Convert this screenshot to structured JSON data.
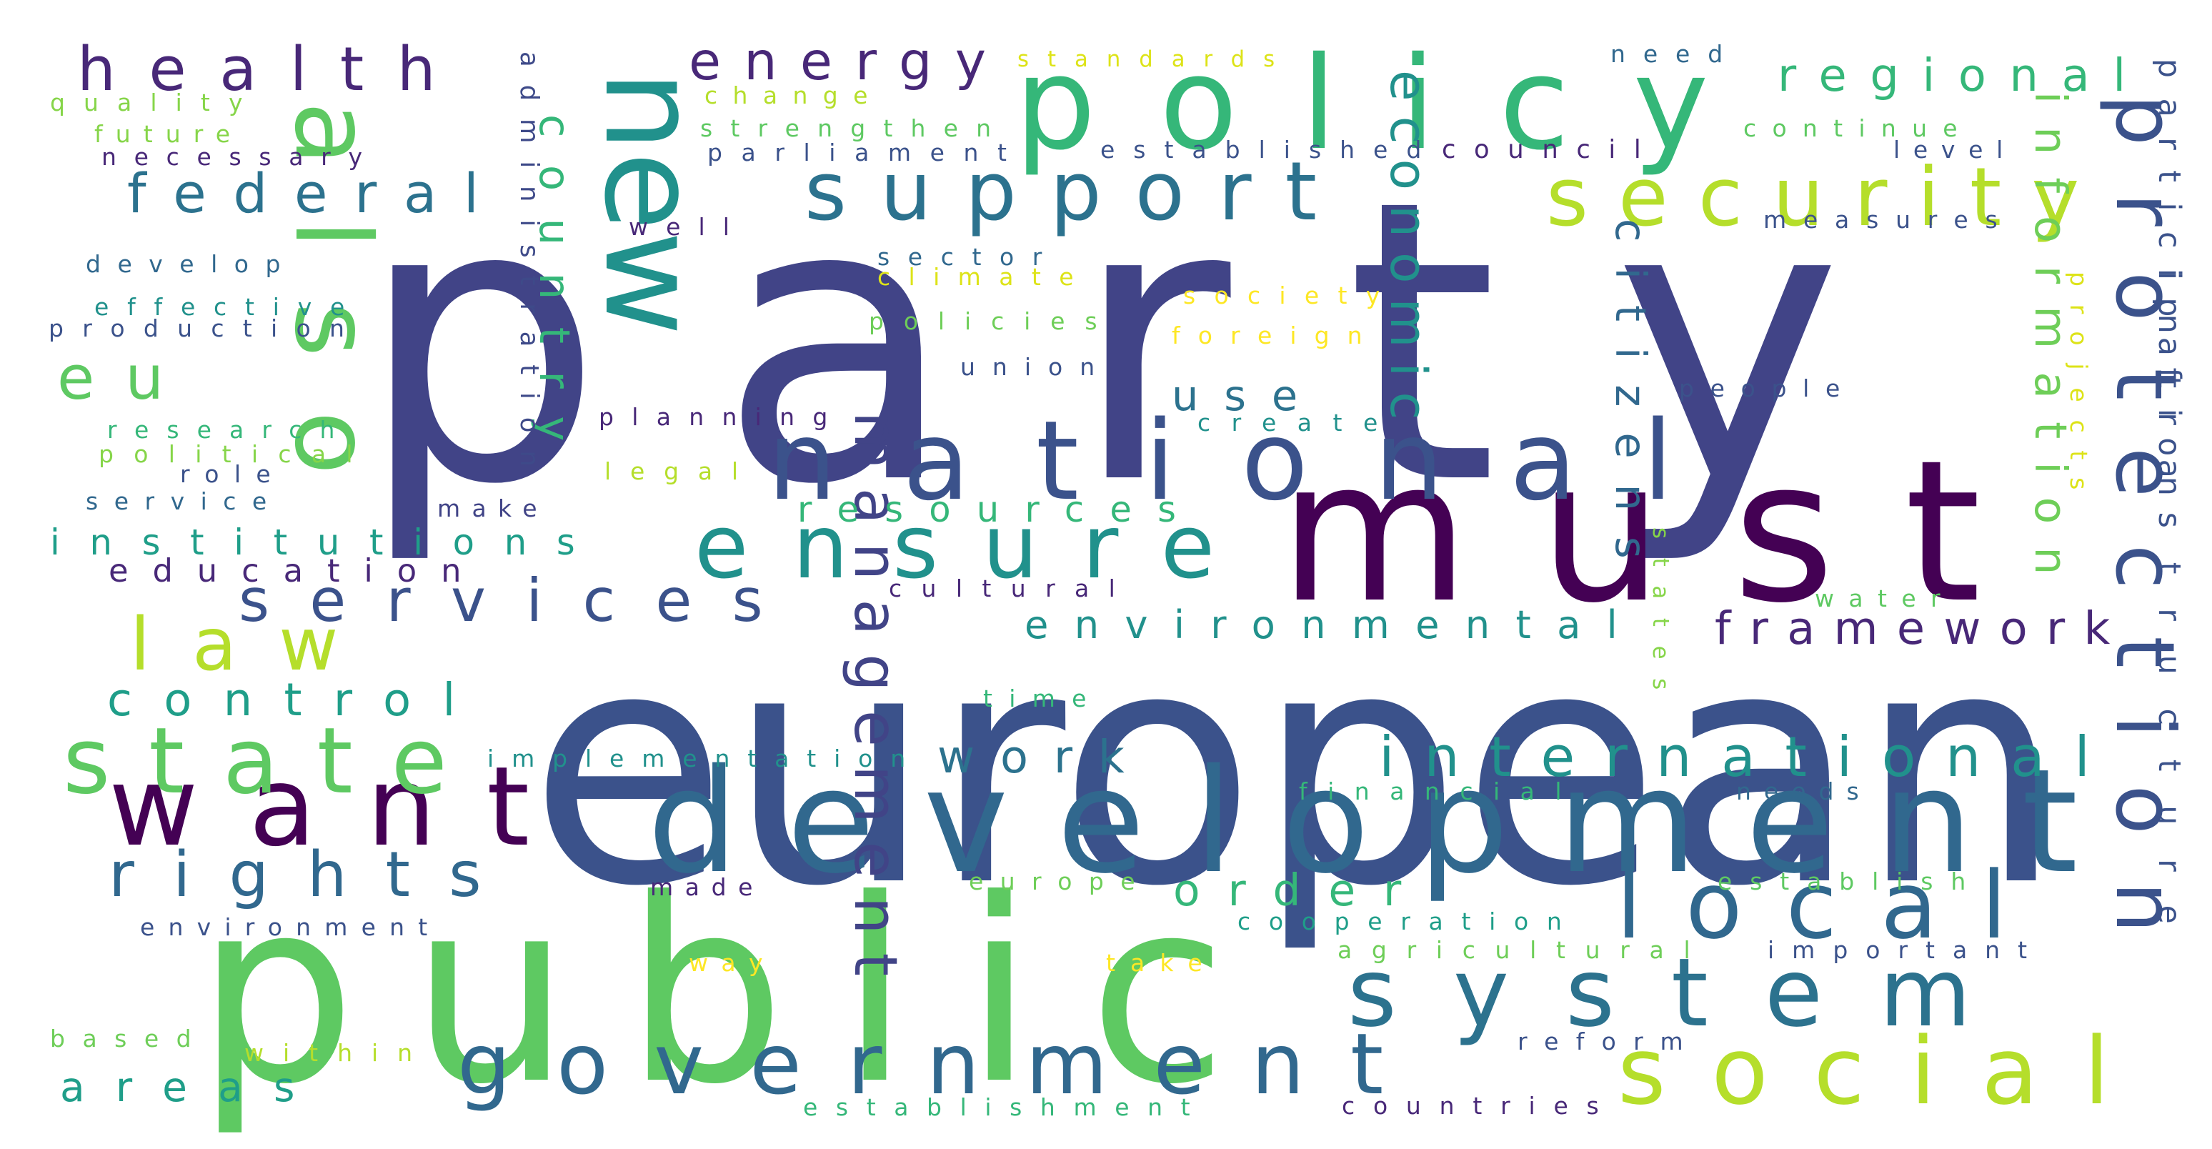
{
  "cloud": {
    "words": [
      {
        "text": "party",
        "color": "#414487"
      },
      {
        "text": "european",
        "color": "#3b528b"
      },
      {
        "text": "public",
        "color": "#5ec962"
      },
      {
        "text": "development",
        "color": "#31688e"
      },
      {
        "text": "must",
        "color": "#440154"
      },
      {
        "text": "policy",
        "color": "#35b779"
      },
      {
        "text": "new",
        "color": "#21918c"
      },
      {
        "text": "national",
        "color": "#3b528b"
      },
      {
        "text": "also",
        "color": "#5ec962"
      },
      {
        "text": "want",
        "color": "#440154"
      },
      {
        "text": "system",
        "color": "#2c728e"
      },
      {
        "text": "government",
        "color": "#31688e"
      },
      {
        "text": "ensure",
        "color": "#21918c"
      },
      {
        "text": "protection",
        "color": "#3b528b"
      },
      {
        "text": "local",
        "color": "#31688e"
      },
      {
        "text": "social",
        "color": "#b5de2b"
      },
      {
        "text": "state",
        "color": "#5ec962"
      },
      {
        "text": "support",
        "color": "#2c728e"
      },
      {
        "text": "security",
        "color": "#b5de2b"
      },
      {
        "text": "management",
        "color": "#414487"
      },
      {
        "text": "international",
        "color": "#21918c"
      },
      {
        "text": "services",
        "color": "#3b528b"
      },
      {
        "text": "law",
        "color": "#b5de2b"
      },
      {
        "text": "rights",
        "color": "#31688e"
      },
      {
        "text": "health",
        "color": "#482878"
      },
      {
        "text": "eu",
        "color": "#5ec962"
      },
      {
        "text": "federal",
        "color": "#2c728e"
      },
      {
        "text": "energy",
        "color": "#482878"
      },
      {
        "text": "regional",
        "color": "#35b779"
      },
      {
        "text": "economic",
        "color": "#21918c"
      },
      {
        "text": "citizens",
        "color": "#31688e"
      },
      {
        "text": "information",
        "color": "#6ece58"
      },
      {
        "text": "framework",
        "color": "#482878"
      },
      {
        "text": "environmental",
        "color": "#21918c"
      },
      {
        "text": "control",
        "color": "#1f9e89"
      },
      {
        "text": "order",
        "color": "#35b779"
      },
      {
        "text": "work",
        "color": "#2c728e"
      },
      {
        "text": "use",
        "color": "#2c728e"
      },
      {
        "text": "resources",
        "color": "#35b779"
      },
      {
        "text": "institutions",
        "color": "#1f9e89"
      },
      {
        "text": "education",
        "color": "#482878"
      },
      {
        "text": "country",
        "color": "#35b779"
      },
      {
        "text": "areas",
        "color": "#1f9e89"
      },
      {
        "text": "infrastructure",
        "color": "#3b528b"
      },
      {
        "text": "participation",
        "color": "#3b528b"
      },
      {
        "text": "administration",
        "color": "#3e4a89"
      },
      {
        "text": "standards",
        "color": "#dde318"
      },
      {
        "text": "need",
        "color": "#31688e"
      },
      {
        "text": "quality",
        "color": "#86d549"
      },
      {
        "text": "change",
        "color": "#b5de2b"
      },
      {
        "text": "future",
        "color": "#86d549"
      },
      {
        "text": "strengthen",
        "color": "#5ec962"
      },
      {
        "text": "necessary",
        "color": "#482878"
      },
      {
        "text": "parliament",
        "color": "#3b528b"
      },
      {
        "text": "established",
        "color": "#3b528b"
      },
      {
        "text": "council",
        "color": "#482878"
      },
      {
        "text": "continue",
        "color": "#5ec962"
      },
      {
        "text": "level",
        "color": "#3b528b"
      },
      {
        "text": "measures",
        "color": "#3b528b"
      },
      {
        "text": "well",
        "color": "#482878"
      },
      {
        "text": "develop",
        "color": "#31688e"
      },
      {
        "text": "sector",
        "color": "#31688e"
      },
      {
        "text": "climate",
        "color": "#dde318"
      },
      {
        "text": "effective",
        "color": "#21918c"
      },
      {
        "text": "production",
        "color": "#3b528b"
      },
      {
        "text": "policies",
        "color": "#6ece58"
      },
      {
        "text": "society",
        "color": "#fde725"
      },
      {
        "text": "foreign",
        "color": "#fde725"
      },
      {
        "text": "union",
        "color": "#3b528b"
      },
      {
        "text": "people",
        "color": "#3b528b"
      },
      {
        "text": "research",
        "color": "#35b779"
      },
      {
        "text": "planning",
        "color": "#482878"
      },
      {
        "text": "create",
        "color": "#21918c"
      },
      {
        "text": "political",
        "color": "#86d549"
      },
      {
        "text": "role",
        "color": "#3b528b"
      },
      {
        "text": "legal",
        "color": "#b5de2b"
      },
      {
        "text": "projects",
        "color": "#dde318"
      },
      {
        "text": "service",
        "color": "#31688e"
      },
      {
        "text": "make",
        "color": "#414487"
      },
      {
        "text": "states",
        "color": "#86d549"
      },
      {
        "text": "water",
        "color": "#5ec962"
      },
      {
        "text": "cultural",
        "color": "#482878"
      },
      {
        "text": "time",
        "color": "#35b779"
      },
      {
        "text": "implementation",
        "color": "#21918c"
      },
      {
        "text": "financial",
        "color": "#35b779"
      },
      {
        "text": "needs",
        "color": "#31688e"
      },
      {
        "text": "made",
        "color": "#482878"
      },
      {
        "text": "europe",
        "color": "#6ece58"
      },
      {
        "text": "establish",
        "color": "#5ec962"
      },
      {
        "text": "environment",
        "color": "#3b528b"
      },
      {
        "text": "cooperation",
        "color": "#1f9e89"
      },
      {
        "text": "agricultural",
        "color": "#6ece58"
      },
      {
        "text": "important",
        "color": "#3b528b"
      },
      {
        "text": "way",
        "color": "#fde725"
      },
      {
        "text": "take",
        "color": "#fde725"
      },
      {
        "text": "based",
        "color": "#6ece58"
      },
      {
        "text": "within",
        "color": "#b5de2b"
      },
      {
        "text": "reform",
        "color": "#3b528b"
      },
      {
        "text": "establishment",
        "color": "#35b779"
      },
      {
        "text": "countries",
        "color": "#482878"
      }
    ]
  }
}
